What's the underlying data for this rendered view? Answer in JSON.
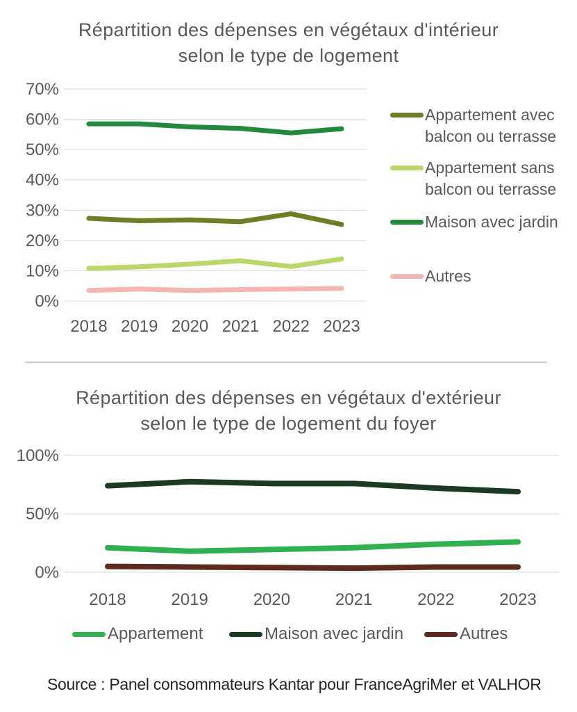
{
  "source": {
    "text": "Source : Panel consommateurs Kantar pour FranceAgriMer et VALHOR"
  },
  "colors": {
    "text_gray": "#595959",
    "gridline": "#d9d9d9",
    "divider": "#c8c8c8",
    "source_text": "#262626"
  },
  "chart_data": [
    {
      "type": "line",
      "title": "Répartition des dépenses en végétaux d'intérieur selon le type de logement",
      "title_lines": [
        "Répartition des dépenses en végétaux d'intérieur",
        "selon le type de logement"
      ],
      "categories": [
        "2018",
        "2019",
        "2020",
        "2021",
        "2022",
        "2023"
      ],
      "series": [
        {
          "name": "Appartement avec balcon ou terrasse",
          "legend_lines": [
            "Appartement avec",
            "balcon ou terrasse"
          ],
          "color": "#6f7e22",
          "values": [
            27.3,
            26.5,
            26.8,
            26.2,
            28.8,
            25.3
          ]
        },
        {
          "name": "Appartement sans balcon ou terrasse",
          "legend_lines": [
            "Appartement sans",
            "balcon ou terrasse"
          ],
          "color": "#bdd766",
          "values": [
            10.8,
            11.3,
            12.2,
            13.3,
            11.4,
            13.9
          ]
        },
        {
          "name": "Maison avec jardin",
          "legend_lines": [
            "Maison avec jardin"
          ],
          "color": "#1f8b3b",
          "values": [
            58.5,
            58.5,
            57.5,
            57.0,
            55.5,
            56.9
          ]
        },
        {
          "name": "Autres",
          "legend_lines": [
            "Autres"
          ],
          "color": "#f6b5b2",
          "values": [
            3.5,
            4.0,
            3.5,
            3.8,
            4.0,
            4.2
          ]
        }
      ],
      "ylim": [
        0,
        70
      ],
      "yticks": [
        0,
        10,
        20,
        30,
        40,
        50,
        60,
        70
      ],
      "ytick_labels": [
        "0%",
        "10%",
        "20%",
        "30%",
        "40%",
        "50%",
        "60%",
        "70%"
      ],
      "grid": "horizontal",
      "legend_position": "right"
    },
    {
      "type": "line",
      "title": "Répartition des dépenses en végétaux d'extérieur selon le type de logement du foyer",
      "title_lines": [
        "Répartition des dépenses en végétaux d'extérieur",
        "selon le type de logement du foyer"
      ],
      "categories": [
        "2018",
        "2019",
        "2020",
        "2021",
        "2022",
        "2023"
      ],
      "series": [
        {
          "name": "Appartement",
          "legend_lines": [
            "Appartement"
          ],
          "color": "#2eb14f",
          "values": [
            21,
            18,
            19.5,
            21,
            24,
            26
          ]
        },
        {
          "name": "Maison avec jardin",
          "legend_lines": [
            "Maison avec jardin"
          ],
          "color": "#1c3a23",
          "values": [
            74,
            77.5,
            76,
            76,
            72,
            69
          ]
        },
        {
          "name": "Autres",
          "legend_lines": [
            "Autres"
          ],
          "color": "#5a2b1e",
          "values": [
            5,
            4.5,
            4,
            3.5,
            4.5,
            4.5
          ]
        }
      ],
      "ylim": [
        0,
        100
      ],
      "yticks": [
        0,
        50,
        100
      ],
      "ytick_labels": [
        "0%",
        "50%",
        "100%"
      ],
      "grid": "horizontal",
      "legend_position": "bottom"
    }
  ]
}
